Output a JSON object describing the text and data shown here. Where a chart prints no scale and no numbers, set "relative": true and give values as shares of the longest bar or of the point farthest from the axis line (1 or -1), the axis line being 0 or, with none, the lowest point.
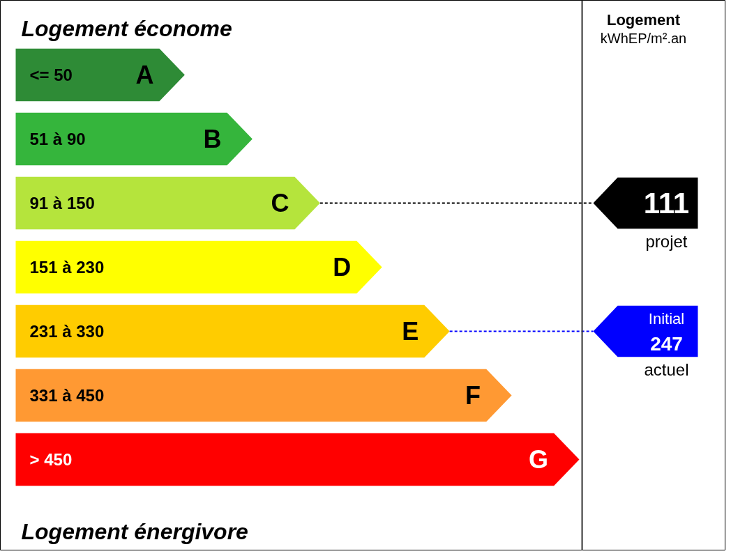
{
  "chart_data": {
    "type": "bar",
    "orientation": "horizontal",
    "relative": true,
    "tick_labels": false,
    "categories": [
      "A",
      "B",
      "C",
      "D",
      "E",
      "F",
      "G"
    ],
    "values": [
      0.3,
      0.42,
      0.54,
      0.65,
      0.77,
      0.88,
      1
    ],
    "colors": [
      "#2e8b36",
      "#35b53c",
      "#b5e43c",
      "#ffff00",
      "#ffcc00",
      "#ff9933",
      "#ff0000"
    ],
    "ref_lines": [
      {
        "axis": "x",
        "value": 1.005,
        "color": "#303030"
      },
      {
        "axis": "y",
        "value": "C",
        "color": "#000000",
        "line_style": "dashed"
      },
      {
        "axis": "y",
        "value": "E",
        "color": "#0000ff",
        "line_style": "dashed"
      }
    ],
    "annotations": [
      "Logement économe",
      "Logement énergivore",
      "Logement",
      "kWhEP/m².an",
      "<= 50",
      "51 à 90",
      "91 à 150",
      "151 à 230",
      "231 à 330",
      "331 à 450",
      "> 450",
      "111",
      "projet",
      "247",
      "Initial",
      "actuel"
    ]
  }
}
